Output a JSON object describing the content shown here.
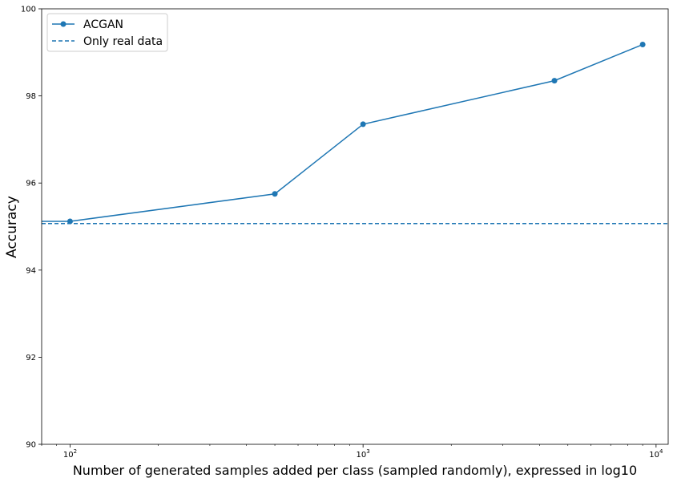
{
  "chart_data": {
    "type": "line",
    "xlabel": "Number of generated samples added per class (sampled randomly), expressed in log10",
    "ylabel": "Accuracy",
    "xscale": "log",
    "xlim": [
      80,
      11000
    ],
    "ylim": [
      90,
      100
    ],
    "yticks": [
      90,
      92,
      94,
      96,
      98,
      100
    ],
    "xticks": [
      {
        "value": 100,
        "base": "10",
        "exp": "2"
      },
      {
        "value": 1000,
        "base": "10",
        "exp": "3"
      },
      {
        "value": 10000,
        "base": "10",
        "exp": "4"
      }
    ],
    "grid": false,
    "legend_position": "top-left",
    "series": [
      {
        "name": "ACGAN",
        "style": "solid-with-markers",
        "color": "#1f77b4",
        "x": [
          100,
          500,
          1000,
          4500,
          9000
        ],
        "y": [
          95.12,
          95.75,
          97.35,
          98.35,
          99.18
        ],
        "left_extension_y": 95.12
      },
      {
        "name": "Only real data",
        "style": "dashed-horizontal",
        "color": "#1f77b4",
        "y": 95.07
      }
    ]
  }
}
